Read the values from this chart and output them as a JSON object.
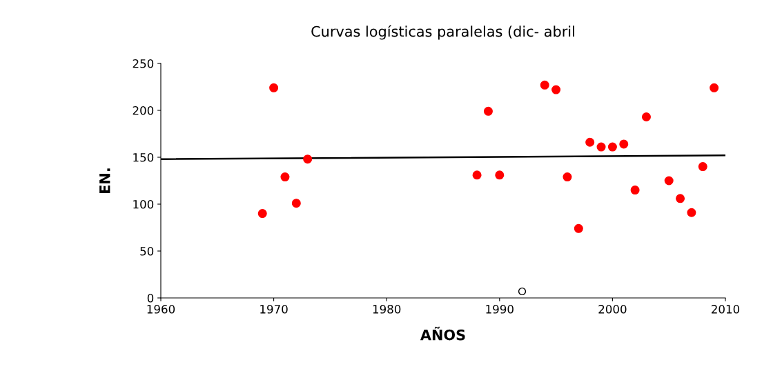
{
  "chart_data": {
    "type": "scatter",
    "title": "Curvas logísticas paralelas (dic- abril",
    "xlabel": "AÑOS",
    "ylabel": "EN.",
    "xlim": [
      1960,
      2010
    ],
    "xticks": [
      1960,
      1970,
      1980,
      1990,
      2000,
      2010
    ],
    "ylim": [
      0,
      250
    ],
    "yticks": [
      0,
      50,
      100,
      150,
      200,
      250
    ],
    "grid": false,
    "legend": false,
    "series": [
      {
        "marker": "circle",
        "color": "#ff0000",
        "x": [
          1969,
          1970,
          1971,
          1972,
          1973,
          1988,
          1989,
          1990,
          1994,
          1995,
          1996,
          1997,
          1998,
          1999,
          2000,
          2001,
          2002,
          2003,
          2005,
          2006,
          2007,
          2008,
          2009
        ],
        "values": [
          90,
          224,
          129,
          101,
          148,
          131,
          199,
          131,
          227,
          222,
          129,
          74,
          166,
          161,
          161,
          164,
          115,
          193,
          125,
          106,
          91,
          140,
          224
        ]
      },
      {
        "marker": "circle",
        "color": "#ffffff",
        "x": [
          1992
        ],
        "values": [
          7
        ]
      },
      {
        "type": "line",
        "marker": "none",
        "color": "#000000",
        "x": [
          1960,
          2010
        ],
        "values": [
          148,
          152
        ]
      }
    ]
  }
}
